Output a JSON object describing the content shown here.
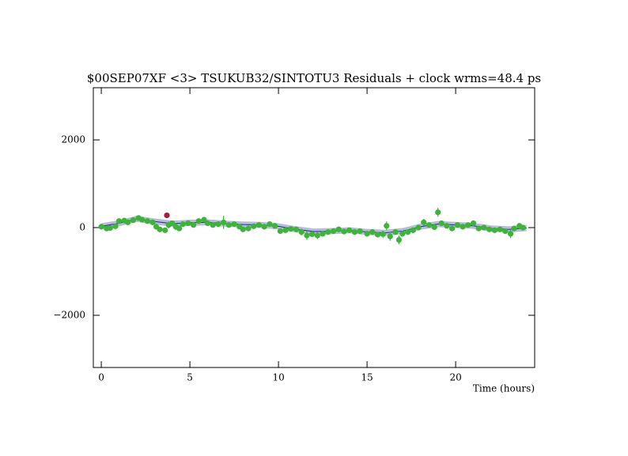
{
  "chart_data": {
    "type": "scatter",
    "title": "$00SEP07XF <3> TSUKUB32/SINTOTU3 Residuals + clock wrms=48.4  ps",
    "x_label": "Time (hours)",
    "xlim": [
      -0.45,
      24.46
    ],
    "ylim": [
      -3190,
      3190
    ],
    "xticks": [
      0,
      5,
      10,
      15,
      20
    ],
    "yticks": [
      {
        "value": -2000,
        "label": "−2000"
      },
      0,
      2000
    ],
    "curve": {
      "color": "#1a2a8a",
      "band_color": "#b8bcd8",
      "band": 70,
      "x": [
        0,
        1,
        2,
        3,
        4,
        5,
        6,
        7,
        8,
        9,
        10,
        11,
        12,
        13,
        14,
        15,
        16,
        17,
        18,
        19,
        20,
        21,
        22,
        23,
        24
      ],
      "values": [
        30,
        100,
        200,
        140,
        90,
        110,
        120,
        90,
        70,
        60,
        30,
        -40,
        -90,
        -80,
        -60,
        -100,
        -120,
        -80,
        20,
        80,
        60,
        40,
        -20,
        -40,
        -10
      ]
    },
    "series": [
      {
        "color": "#3db33a",
        "x": [
          0,
          0.3,
          0.5,
          0.8,
          1.0,
          1.3,
          1.5,
          1.8,
          2.1,
          2.3,
          2.6,
          2.9,
          3.1,
          3.3,
          3.6,
          3.8,
          4.0,
          4.2,
          4.4,
          4.6,
          4.9,
          5.2,
          5.5,
          5.8,
          6.0,
          6.3,
          6.6,
          6.9,
          7.2,
          7.5,
          7.8,
          8.0,
          8.3,
          8.6,
          8.9,
          9.2,
          9.5,
          9.8,
          10.1,
          10.4,
          10.7,
          11.0,
          11.3,
          11.6,
          11.9,
          12.2,
          12.5,
          12.8,
          13.1,
          13.4,
          13.7,
          14.0,
          14.3,
          14.6,
          15.0,
          15.3,
          15.6,
          15.9,
          16.1,
          16.3,
          16.6,
          16.8,
          17.0,
          17.3,
          17.6,
          17.9,
          18.2,
          18.5,
          18.8,
          19.0,
          19.2,
          19.5,
          19.8,
          20.1,
          20.4,
          20.7,
          21.0,
          21.3,
          21.6,
          21.9,
          22.2,
          22.5,
          22.8,
          23.1,
          23.3,
          23.6,
          23.8
        ],
        "values": [
          20,
          -20,
          -10,
          30,
          150,
          160,
          120,
          170,
          220,
          180,
          150,
          120,
          20,
          -40,
          -60,
          60,
          100,
          20,
          -20,
          80,
          100,
          60,
          150,
          180,
          100,
          60,
          80,
          120,
          60,
          80,
          20,
          -40,
          -20,
          30,
          60,
          20,
          80,
          40,
          -80,
          -60,
          -30,
          -40,
          -100,
          -180,
          -150,
          -180,
          -140,
          -100,
          -80,
          -40,
          -90,
          -60,
          -100,
          -80,
          -140,
          -100,
          -160,
          -150,
          40,
          -200,
          -100,
          -280,
          -140,
          -100,
          -60,
          0,
          120,
          60,
          10,
          350,
          100,
          40,
          -20,
          60,
          20,
          60,
          100,
          -20,
          0,
          -40,
          -60,
          -40,
          -80,
          -140,
          -20,
          40,
          0
        ],
        "errors": [
          60,
          60,
          50,
          50,
          50,
          50,
          60,
          50,
          50,
          50,
          50,
          60,
          50,
          50,
          50,
          80,
          60,
          80,
          60,
          50,
          50,
          50,
          50,
          50,
          60,
          50,
          60,
          150,
          50,
          50,
          60,
          50,
          50,
          50,
          60,
          50,
          60,
          50,
          50,
          50,
          50,
          60,
          80,
          100,
          60,
          80,
          60,
          50,
          50,
          50,
          60,
          50,
          50,
          50,
          60,
          50,
          60,
          80,
          100,
          100,
          60,
          100,
          60,
          60,
          50,
          60,
          80,
          60,
          60,
          100,
          60,
          50,
          50,
          50,
          60,
          50,
          60,
          50,
          50,
          50,
          60,
          50,
          60,
          100,
          60,
          60,
          60
        ]
      },
      {
        "color": "#a81e3c",
        "x": [
          3.7
        ],
        "values": [
          280
        ],
        "errors": [
          0
        ]
      }
    ]
  }
}
